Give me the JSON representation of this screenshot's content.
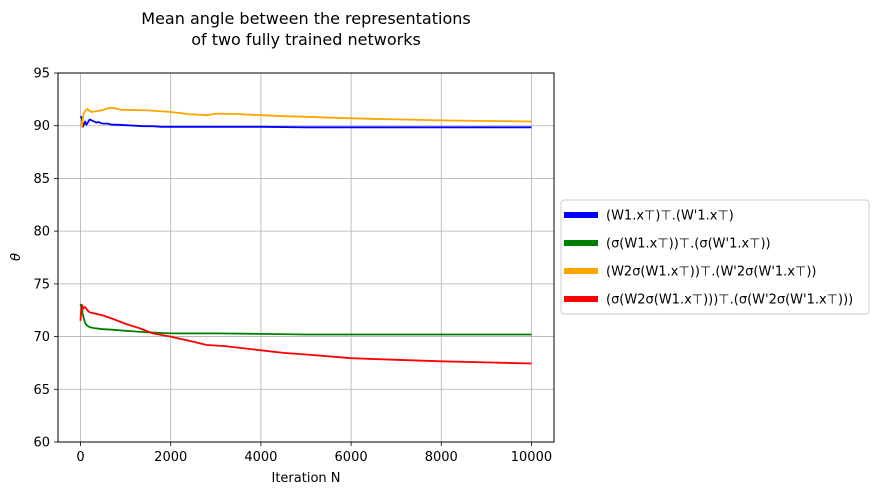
{
  "chart_data": {
    "type": "line",
    "title": [
      "Mean angle between the representations",
      "of  two fully trained networks"
    ],
    "xlabel": "Iteration N",
    "ylabel": "θ",
    "xlim": [
      -500,
      10500
    ],
    "ylim": [
      60,
      95
    ],
    "xticks": [
      0,
      2000,
      4000,
      6000,
      8000,
      10000
    ],
    "yticks": [
      60,
      65,
      70,
      75,
      80,
      85,
      90,
      95
    ],
    "grid": true,
    "legend_position": "center-right-outside",
    "series": [
      {
        "name": "(W1.x⊤)⊤.(W'1.x⊤)",
        "color": "#0000ff",
        "x": [
          0,
          30,
          50,
          80,
          100,
          130,
          160,
          200,
          250,
          300,
          350,
          400,
          450,
          500,
          600,
          700,
          800,
          1000,
          1200,
          1400,
          1600,
          1800,
          2000,
          2400,
          3000,
          4000,
          5000,
          6000,
          7000,
          8000,
          9000,
          10000
        ],
        "y": [
          90.9,
          90.7,
          89.9,
          90.2,
          90.4,
          90.1,
          90.3,
          90.6,
          90.5,
          90.4,
          90.3,
          90.35,
          90.25,
          90.2,
          90.2,
          90.1,
          90.1,
          90.05,
          90.0,
          89.95,
          89.95,
          89.9,
          89.9,
          89.9,
          89.9,
          89.9,
          89.85,
          89.85,
          89.85,
          89.85,
          89.85,
          89.85
        ]
      },
      {
        "name": "(σ(W1.x⊤))⊤.(σ(W'1.x⊤))",
        "color": "#008000",
        "x": [
          0,
          20,
          40,
          60,
          80,
          100,
          130,
          160,
          200,
          250,
          300,
          400,
          500,
          700,
          1000,
          1500,
          2000,
          3000,
          4000,
          5000,
          6000,
          8000,
          10000
        ],
        "y": [
          73.1,
          72.8,
          72.3,
          71.9,
          71.6,
          71.3,
          71.1,
          71.0,
          70.9,
          70.85,
          70.8,
          70.75,
          70.7,
          70.65,
          70.55,
          70.4,
          70.3,
          70.3,
          70.25,
          70.2,
          70.2,
          70.2,
          70.2
        ]
      },
      {
        "name": "(W2σ(W1.x⊤))⊤.(W'2σ(W'1.x⊤))",
        "color": "#ffa500",
        "x": [
          0,
          30,
          60,
          100,
          150,
          200,
          250,
          300,
          400,
          500,
          600,
          700,
          800,
          900,
          1000,
          1500,
          2000,
          2400,
          2800,
          3000,
          3500,
          4000,
          4500,
          5000,
          6000,
          7000,
          8000,
          9000,
          10000
        ],
        "y": [
          90.3,
          89.9,
          91.1,
          91.4,
          91.6,
          91.4,
          91.3,
          91.35,
          91.4,
          91.5,
          91.65,
          91.7,
          91.6,
          91.5,
          91.5,
          91.45,
          91.3,
          91.1,
          91.0,
          91.15,
          91.1,
          91.0,
          90.9,
          90.85,
          90.7,
          90.6,
          90.5,
          90.45,
          90.4
        ]
      },
      {
        "name": "(σ(W2σ(W1.x⊤)))⊤.(σ(W'2σ(W'1.x⊤)))",
        "color": "#ff0000",
        "x": [
          0,
          15,
          30,
          50,
          80,
          100,
          150,
          200,
          300,
          500,
          700,
          1000,
          1300,
          1600,
          2000,
          2200,
          2500,
          2800,
          3200,
          4000,
          4500,
          5000,
          6000,
          7000,
          8000,
          9000,
          10000
        ],
        "y": [
          71.5,
          72.6,
          73.0,
          72.6,
          72.8,
          72.8,
          72.5,
          72.3,
          72.2,
          72.0,
          71.7,
          71.2,
          70.8,
          70.3,
          70.0,
          69.8,
          69.5,
          69.2,
          69.1,
          68.7,
          68.45,
          68.3,
          67.95,
          67.8,
          67.65,
          67.55,
          67.45
        ]
      }
    ]
  }
}
